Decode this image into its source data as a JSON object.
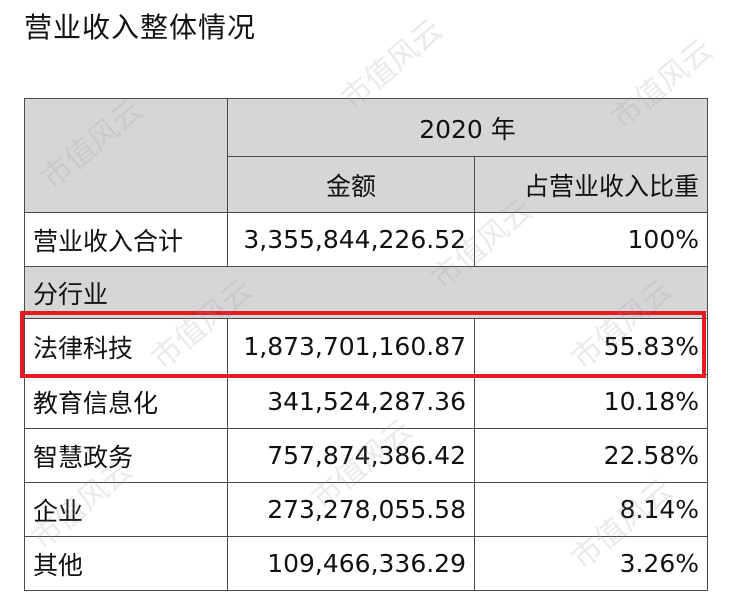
{
  "heading": "营业收入整体情况",
  "table": {
    "year_label": "2020 年",
    "col_amount": "金额",
    "col_share": "占营业收入比重",
    "total": {
      "label": "营业收入合计",
      "amount": "3,355,844,226.52",
      "share": "100%"
    },
    "section_label": "分行业",
    "rows": [
      {
        "label": "法律科技",
        "amount": "1,873,701,160.87",
        "share": "55.83%"
      },
      {
        "label": "教育信息化",
        "amount": "341,524,287.36",
        "share": "10.18%"
      },
      {
        "label": "智慧政务",
        "amount": "757,874,386.42",
        "share": "22.58%"
      },
      {
        "label": "企业",
        "amount": "273,278,055.58",
        "share": "8.14%"
      },
      {
        "label": "其他",
        "amount": "109,466,336.29",
        "share": "3.26%"
      }
    ]
  },
  "highlight": {
    "row_label": "法律科技",
    "color": "#e31c23"
  },
  "watermark": "市值风云"
}
